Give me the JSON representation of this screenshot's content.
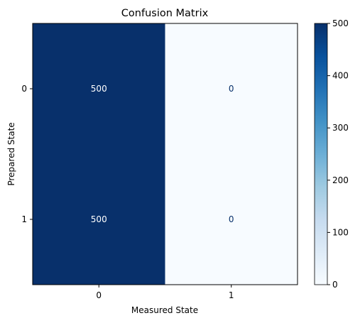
{
  "chart_data": {
    "type": "heatmap",
    "title": "Confusion Matrix",
    "xlabel": "Measured State",
    "ylabel": "Prepared State",
    "x_categories": [
      "0",
      "1"
    ],
    "y_categories": [
      "0",
      "1"
    ],
    "values": [
      [
        500,
        0
      ],
      [
        500,
        0
      ]
    ],
    "cell_labels": [
      [
        "500",
        "0"
      ],
      [
        "500",
        "0"
      ]
    ],
    "colormap": "Blues",
    "colorbar": {
      "range": [
        0,
        500
      ],
      "ticks": [
        0,
        100,
        200,
        300,
        400,
        500
      ],
      "tick_labels": [
        "0",
        "100",
        "200",
        "300",
        "400",
        "500"
      ]
    },
    "colors": {
      "high": "#08306b",
      "low": "#f7fbff",
      "text_on_dark": "#ffffff",
      "text_on_light": "#08306b"
    }
  }
}
